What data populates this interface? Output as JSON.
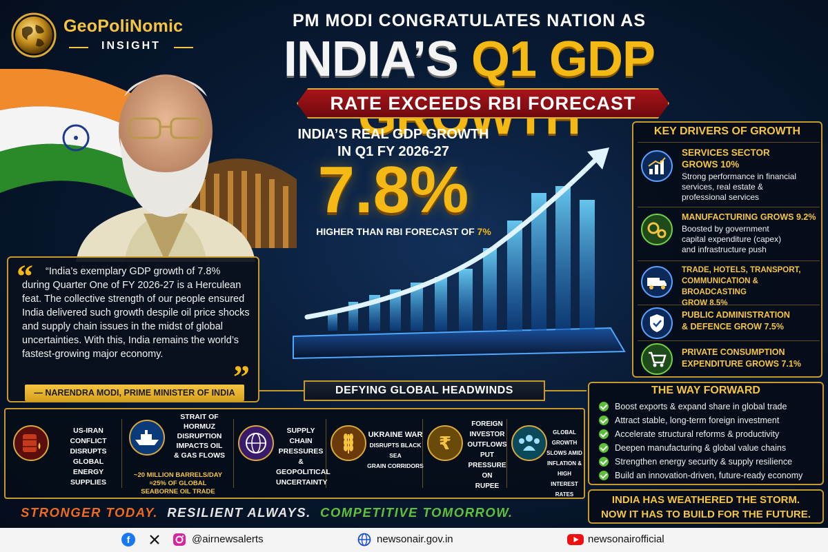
{
  "brand": {
    "name": "GeoPoliNomic",
    "sub": "INSIGHT"
  },
  "headline": {
    "line1": "PM MODI CONGRATULATES NATION AS",
    "line2_white": "INDIA’S",
    "line2_gold": "Q1 GDP GROWTH",
    "ribbon": "RATE EXCEEDS RBI FORECAST"
  },
  "gdp": {
    "label_line1": "INDIA’S REAL GDP GROWTH",
    "label_line2": "IN Q1 FY 2026-27",
    "value": "7.8%",
    "note_prefix": "HIGHER THAN RBI FORECAST OF ",
    "note_highlight": "7%"
  },
  "quote": {
    "text": "“India’s exemplary GDP growth of 7.8% during Quarter One of FY 2026-27 is a Herculean feat. The collective strength of our people ensured India delivered such growth despile oil price shocks and supply chain issues in the midst of global uncertainties. With this, India remains the world’s fastest-growing major economy.",
    "author": "— NARENDRA MODI, PRIME MINISTER OF INDIA"
  },
  "drivers": {
    "title": "KEY DRIVERS OF GROWTH",
    "items": [
      {
        "head1": "SERVICES SECTOR",
        "head2": "GROWS 10%",
        "desc1": "Strong performance in financial",
        "desc2": "services, real estate &",
        "desc3": "professional services",
        "icon": "bar-chart-icon"
      },
      {
        "head1": "MANUFACTURING GROWS 9.2%",
        "desc1": "Boosted by government",
        "desc2": "capital expenditure (capex)",
        "desc3": "and infrastructure push",
        "icon": "gears-icon"
      },
      {
        "head1": "TRADE, HOTELS, TRANSPORT,",
        "head2": "COMMUNICATION & BROADCASTING",
        "head3": "GROW 8.5%",
        "icon": "truck-icon"
      },
      {
        "head1": "PUBLIC ADMINISTRATION",
        "head2": "& DEFENCE GROW 7.5%",
        "icon": "shield-icon"
      },
      {
        "head1": "PRIVATE CONSUMPTION",
        "head2": "EXPENDITURE GROWS 7.1%",
        "icon": "cart-icon"
      }
    ]
  },
  "headwinds": {
    "title": "DEFYING GLOBAL HEADWINDS",
    "items": [
      {
        "lines": [
          "US-IRAN CONFLICT",
          "DISRUPTS GLOBAL",
          "ENERGY SUPPLIES"
        ],
        "icon": "oil-barrel-icon"
      },
      {
        "lines": [
          "STRAIT OF",
          "HORMUZ",
          "DISRUPTION",
          "IMPACTS OIL",
          "& GAS FLOWS"
        ],
        "extra": [
          "~20 MILLION BARRELS/DAY",
          "≈25% OF GLOBAL",
          "SEABORNE OIL TRADE"
        ],
        "icon": "ship-icon"
      },
      {
        "lines": [
          "SUPPLY CHAIN",
          "PRESSURES &",
          "GEOPOLITICAL",
          "UNCERTAINTY"
        ],
        "icon": "globe-network-icon"
      },
      {
        "lines": [
          "UKRAINE WAR",
          "DISRUPTS BLACK SEA",
          "GRAIN CORRIDORS"
        ],
        "icon": "wheat-icon"
      },
      {
        "lines": [
          "FOREIGN",
          "INVESTOR",
          "OUTFLOWS PUT",
          "PRESSURE ON",
          "RUPEE"
        ],
        "icon": "rupee-icon"
      },
      {
        "lines": [
          "GLOBAL GROWTH",
          "SLOWS AMID",
          "INFLATION &",
          "HIGH INTEREST RATES"
        ],
        "icon": "people-icon"
      }
    ]
  },
  "way_forward": {
    "title": "THE WAY FORWARD",
    "items": [
      "Boost exports & expand share in global trade",
      "Attract stable, long-term foreign investment",
      "Accelerate structural reforms & productivity",
      "Deepen manufacturing & global value chains",
      "Strengthen energy security & supply resilience",
      "Build an innovation-driven, future-ready economy"
    ]
  },
  "storm": {
    "line1": "INDIA HAS WEATHERED THE STORM.",
    "line2": "NOW IT HAS TO BUILD FOR THE FUTURE."
  },
  "tagline": {
    "t1": "STRONGER TODAY.",
    "t2": "RESILIENT ALWAYS.",
    "t3": "COMPETITIVE TOMORROW."
  },
  "footer": {
    "handle": "@airnewsalerts",
    "website": "newsonair.gov.in",
    "youtube": "newsonairofficial"
  },
  "colors": {
    "gold": "#f5b915",
    "navy": "#081a33",
    "red_ribbon": "#a8141a",
    "green": "#5bbf3a"
  }
}
